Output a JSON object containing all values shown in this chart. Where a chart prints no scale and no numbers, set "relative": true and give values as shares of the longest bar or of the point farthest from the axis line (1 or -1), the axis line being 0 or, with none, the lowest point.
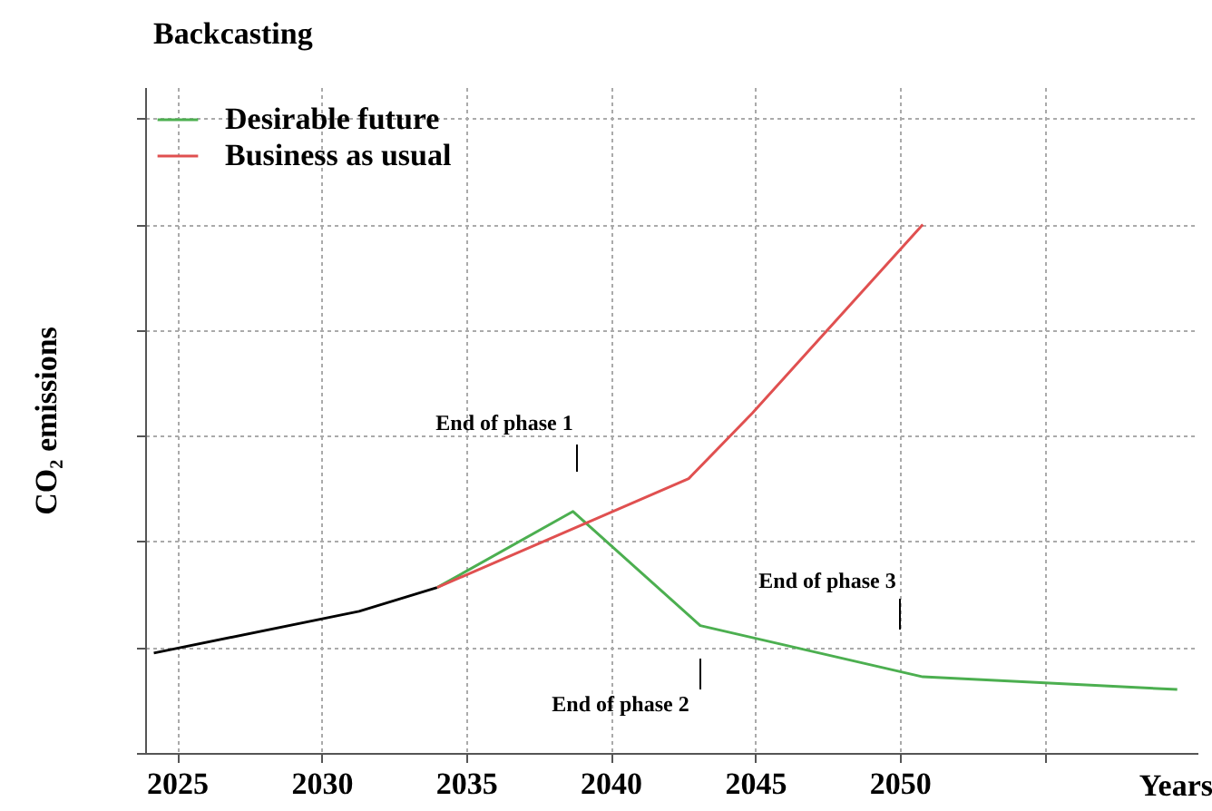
{
  "chart_data": {
    "type": "line",
    "title": "Backcasting",
    "xlabel": "Years",
    "ylabel": "CO₂ emissions",
    "relative": true,
    "xlim": [
      2023.9,
      2060.3
    ],
    "xticks": [
      2025,
      2030,
      2035,
      2040,
      2045,
      2050,
      {
        "value": 2055,
        "label": null
      }
    ],
    "grid": true,
    "legend": "top left",
    "line_style": "solid",
    "marker": "none",
    "series": [
      {
        "color": "#000000",
        "x": [
          2024.2,
          2031.3,
          2034.0
        ],
        "values": [
          0.189,
          0.268,
          0.313
        ]
      },
      {
        "name": "Desirable future",
        "color": "#4caf50",
        "x": [
          2034.0,
          2038.7,
          2043.1,
          2050.8,
          2059.6
        ],
        "values": [
          0.313,
          0.457,
          0.241,
          0.144,
          0.12
        ]
      },
      {
        "name": "Business as usual",
        "color": "#e05050",
        "x": [
          2034.0,
          2042.7,
          2044.9,
          2050.8
        ],
        "values": [
          0.313,
          0.519,
          0.643,
          1.0
        ]
      }
    ],
    "annotations": [
      "End of phase 1",
      "End of phase 2",
      "End of phase 3"
    ]
  }
}
